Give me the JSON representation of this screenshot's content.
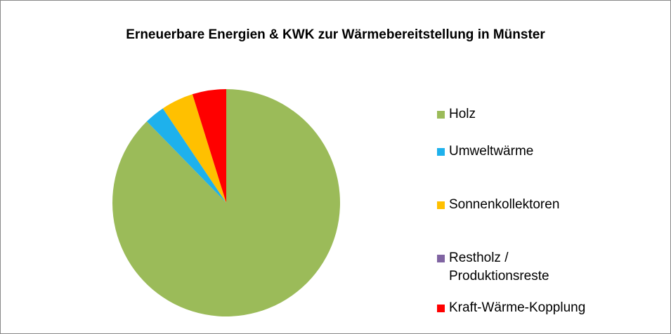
{
  "chart_data": {
    "type": "pie",
    "title": "Erneuerbare Energien & KWK zur Wärmebereitstellung in Münster",
    "categories": [
      "Holz",
      "Umweltwärme",
      "Sonnenkollektoren",
      "Restholz / Produktionsreste",
      "Kraft-Wärme-Kopplung"
    ],
    "values": [
      87.7,
      2.9,
      4.6,
      0,
      4.8
    ],
    "colors": [
      "#9bbb59",
      "#1eb1ec",
      "#ffc000",
      "#8064a2",
      "#ff0000"
    ],
    "legend": "right"
  }
}
